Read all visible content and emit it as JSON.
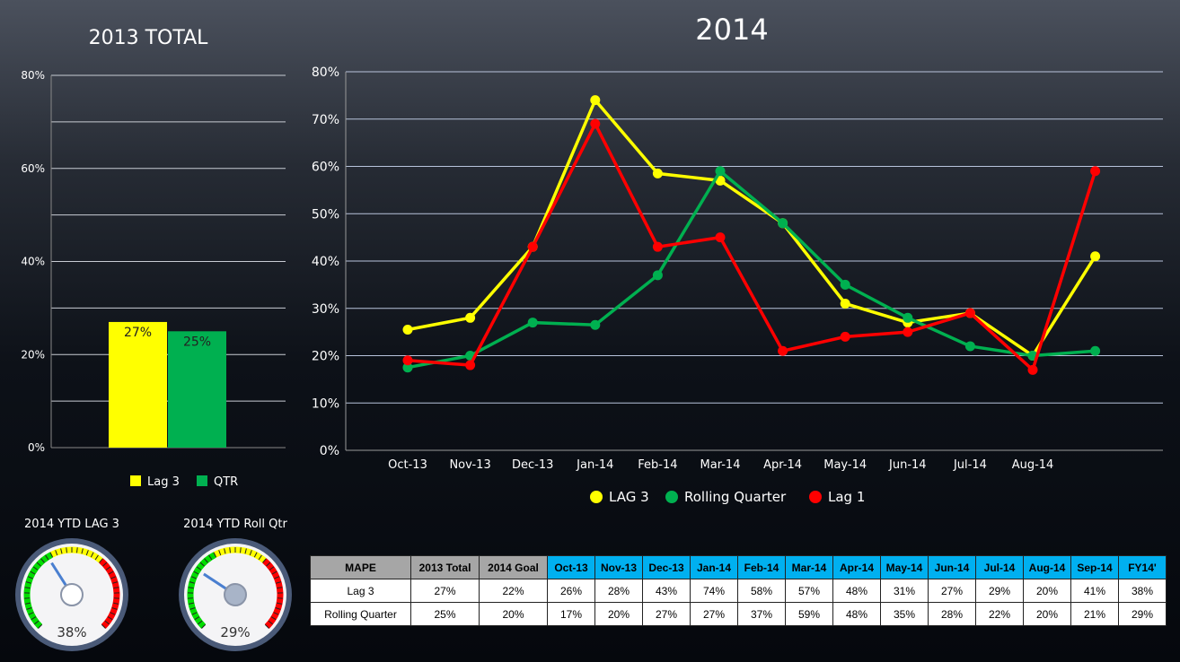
{
  "titles": {
    "left": "2013 TOTAL",
    "right": "2014"
  },
  "colors": {
    "lag3": "#ffff00",
    "rolling": "#00b050",
    "lag1": "#ff0000"
  },
  "chart_data": [
    {
      "type": "bar",
      "title": "2013 TOTAL",
      "categories": [
        "Lag 3",
        "QTR"
      ],
      "values": [
        27,
        25
      ],
      "data_labels": [
        "27%",
        "25%"
      ],
      "ylim": [
        0,
        80
      ],
      "yticks": [
        "0%",
        "20%",
        "40%",
        "60%",
        "80%"
      ],
      "grid": true,
      "legend": "bottom",
      "legend_entries": [
        "Lag 3",
        "QTR"
      ]
    },
    {
      "type": "line",
      "title": "2014",
      "categories": [
        "Oct-13",
        "Nov-13",
        "Dec-13",
        "Jan-14",
        "Feb-14",
        "Mar-14",
        "Apr-14",
        "May-14",
        "Jun-14",
        "Jul-14",
        "Aug-14",
        ""
      ],
      "ylim": [
        0,
        80
      ],
      "yticks": [
        "0%",
        "10%",
        "20%",
        "30%",
        "40%",
        "50%",
        "60%",
        "70%",
        "80%"
      ],
      "grid": true,
      "legend": "bottom",
      "series": [
        {
          "name": "LAG 3",
          "values": [
            25.5,
            28,
            43,
            74,
            58.5,
            57,
            48,
            31,
            27,
            29,
            20,
            41
          ]
        },
        {
          "name": "Rolling Quarter",
          "values": [
            17.5,
            20,
            27,
            26.5,
            37,
            59,
            48,
            35,
            28,
            22,
            20,
            21
          ]
        },
        {
          "name": "Lag 1",
          "values": [
            19,
            18,
            43,
            69,
            43,
            45,
            21,
            24,
            25,
            29,
            17,
            59
          ]
        }
      ]
    }
  ],
  "gauges": [
    {
      "title": "2014 YTD LAG 3",
      "value": 38,
      "label": "38%"
    },
    {
      "title": "2014 YTD Roll Qtr",
      "value": 29,
      "label": "29%"
    }
  ],
  "table": {
    "headers": [
      "MAPE",
      "2013 Total",
      "2014 Goal",
      "Oct-13",
      "Nov-13",
      "Dec-13",
      "Jan-14",
      "Feb-14",
      "Mar-14",
      "Apr-14",
      "May-14",
      "Jun-14",
      "Jul-14",
      "Aug-14",
      "Sep-14",
      "FY14'"
    ],
    "rows": [
      [
        "Lag 3",
        "27%",
        "22%",
        "26%",
        "28%",
        "43%",
        "74%",
        "58%",
        "57%",
        "48%",
        "31%",
        "27%",
        "29%",
        "20%",
        "41%",
        "38%"
      ],
      [
        "Rolling Quarter",
        "25%",
        "20%",
        "17%",
        "20%",
        "27%",
        "27%",
        "37%",
        "59%",
        "48%",
        "35%",
        "28%",
        "22%",
        "20%",
        "21%",
        "29%"
      ]
    ]
  }
}
